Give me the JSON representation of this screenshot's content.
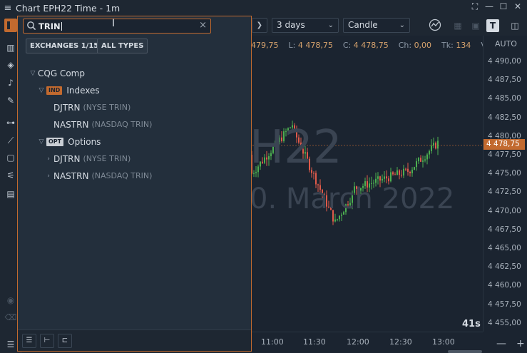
{
  "window": {
    "title": "Chart EPH22 Time - 1m",
    "menu_icon": "hamburger-icon",
    "controls": [
      "fullscreen-icon",
      "minimize-icon",
      "maximize-icon",
      "close-icon"
    ]
  },
  "toolbar": {
    "period": "3 days",
    "chart_type": "Candle"
  },
  "ohlc": {
    "open_partial": "479,75",
    "low_label": "L:",
    "low": "4 478,75",
    "close_label": "C:",
    "close": "4 478,75",
    "change_label": "Ch:",
    "change": "0,00",
    "ticks_label": "Tk:",
    "ticks": "134",
    "volume_label": "V"
  },
  "watermark": {
    "symbol_partial": "H22",
    "expiry_partial": "0. March 2022"
  },
  "price_axis": {
    "auto_label": "AUTO",
    "labels": [
      "4 490,00",
      "4 487,50",
      "4 485,00",
      "4 482,50",
      "4 480,00",
      "4 477,50",
      "4 475,00",
      "4 472,50",
      "4 470,00",
      "4 467,50",
      "4 465,00",
      "4 462,50",
      "4 460,00",
      "4 457,50",
      "4 455,00"
    ],
    "last_price": "4 478,75"
  },
  "time_axis": {
    "labels": [
      "11:00",
      "11:30",
      "12:00",
      "12:30",
      "13:00"
    ]
  },
  "timer": "41s",
  "search": {
    "value": "TRIN",
    "exchanges_button": "EXCHANGES 1/15",
    "types_button": "ALL TYPES"
  },
  "tree": {
    "root": "CQG Comp",
    "groups": [
      {
        "tag": "IND",
        "label": "Indexes",
        "items": [
          {
            "symbol": "DJTRN",
            "desc": "(NYSE TRIN)"
          },
          {
            "symbol": "NASTRN",
            "desc": "(NASDAQ TRIN)"
          }
        ]
      },
      {
        "tag": "OPT",
        "label": "Options",
        "items": [
          {
            "symbol": "DJTRN",
            "desc": "(NYSE TRIN)"
          },
          {
            "symbol": "NASTRN",
            "desc": "(NASDAQ TRIN)"
          }
        ]
      }
    ]
  },
  "colors": {
    "accent": "#c26a2f",
    "background": "#1b2430",
    "panel": "#232f3c",
    "candle_up": "#4caf50",
    "candle_down": "#e05a4a"
  }
}
